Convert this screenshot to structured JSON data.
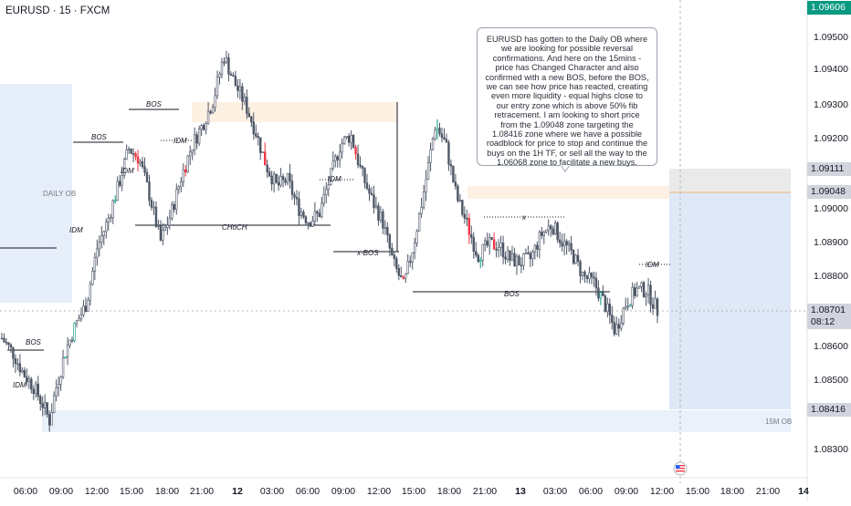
{
  "header": {
    "symbol": "EURUSD · 15 · FXCM"
  },
  "colors": {
    "up": "#089981",
    "down": "#f23645",
    "candle": "#4d5666",
    "ob_zone": "#e6eefa",
    "supply_zone": "#fdf1e3",
    "target_zone": "#dfe8f7",
    "stop_zone": "#eaeaea",
    "accent": "#2962ff"
  },
  "note": {
    "text": "EURUSD has gotten to the Daily OB where we are looking for possible reversal confirmations. And here on the 15mins - price has Changed Character and also confirmed with a new BOS, before the BOS, we can see how price has reacted, creating even more liquidity - equal highs close to our entry zone which is above 50% fib retracement. I am looking to short price from the 1.09048 zone targeting the 1.08416 zone where we have a possible roadblock for price to stop and continue the buys on the 1H TF, or sell all the way to the 1.06068 zone to facilitate a new buys."
  },
  "price_axis": {
    "ticks": [
      "1.09500",
      "1.09400",
      "1.09300",
      "1.09200",
      "1.09000",
      "1.08900",
      "1.08800",
      "1.08600",
      "1.08500",
      "1.08300"
    ],
    "tags": [
      {
        "price": "1.09606",
        "bg": "#089981",
        "fg": "#ffffff"
      },
      {
        "price": "1.09111",
        "bg": "#d1d4dc",
        "fg": "#131722"
      },
      {
        "price": "1.09048",
        "bg": "#d1d4dc",
        "fg": "#131722"
      },
      {
        "price": "1.08701",
        "bg": "#d1d4dc",
        "fg": "#131722",
        "sub": "08:12"
      },
      {
        "price": "1.08416",
        "bg": "#d1d4dc",
        "fg": "#131722"
      }
    ]
  },
  "time_axis": {
    "labels": [
      "06:00",
      "09:00",
      "12:00",
      "15:00",
      "18:00",
      "21:00",
      "12",
      "03:00",
      "06:00",
      "09:00",
      "12:00",
      "15:00",
      "18:00",
      "21:00",
      "13",
      "03:00",
      "06:00",
      "09:00",
      "12:00",
      "15:00",
      "18:00",
      "21:00",
      "14"
    ]
  },
  "annotations": {
    "daily_ob": "DAILY OB",
    "ob_15m": "15M OB",
    "bos": "BOS",
    "idm": "IDM",
    "choch": "CHoCH",
    "x_bos": "x-BOS",
    "x": "x"
  },
  "chart_data": {
    "type": "candlestick",
    "symbol": "EURUSD",
    "timeframe": "15",
    "source": "FXCM",
    "last_price": 1.08701,
    "countdown": "08:12",
    "ylim": [
      1.0825,
      1.0965
    ],
    "key_levels": {
      "entry": 1.09048,
      "target": 1.08416,
      "stop": 1.09111,
      "high": 1.09606
    },
    "close_path": [
      [
        0,
        1.0862
      ],
      [
        1,
        1.0858
      ],
      [
        2,
        1.0852
      ],
      [
        3,
        1.0848
      ],
      [
        4,
        1.0842
      ],
      [
        4.5,
        1.0838
      ],
      [
        5,
        1.0846
      ],
      [
        6,
        1.0858
      ],
      [
        7,
        1.0866
      ],
      [
        8,
        1.0872
      ],
      [
        9,
        1.0888
      ],
      [
        10,
        1.0896
      ],
      [
        11,
        1.0906
      ],
      [
        12,
        1.0917
      ],
      [
        13,
        1.0914
      ],
      [
        14,
        1.0903
      ],
      [
        15,
        1.089
      ],
      [
        16,
        1.0898
      ],
      [
        17,
        1.0909
      ],
      [
        18,
        1.0918
      ],
      [
        19,
        1.0924
      ],
      [
        20,
        1.0931
      ],
      [
        21,
        1.0944
      ],
      [
        22,
        1.0936
      ],
      [
        23,
        1.093
      ],
      [
        24,
        1.0922
      ],
      [
        25,
        1.0912
      ],
      [
        26,
        1.0906
      ],
      [
        27,
        1.0908
      ],
      [
        28,
        1.09
      ],
      [
        29,
        1.0896
      ],
      [
        30,
        1.0898
      ],
      [
        31,
        1.0908
      ],
      [
        32,
        1.0918
      ],
      [
        33,
        1.0921
      ],
      [
        34,
        1.091
      ],
      [
        35,
        1.0902
      ],
      [
        36,
        1.0896
      ],
      [
        37,
        1.0884
      ],
      [
        38,
        1.0877
      ],
      [
        39,
        1.089
      ],
      [
        40,
        1.0906
      ],
      [
        41,
        1.0924
      ],
      [
        42,
        1.0918
      ],
      [
        43,
        1.0903
      ],
      [
        44,
        1.0895
      ],
      [
        45,
        1.0886
      ],
      [
        46,
        1.0889
      ],
      [
        47,
        1.0889
      ],
      [
        48,
        1.0885
      ],
      [
        49,
        1.0884
      ],
      [
        50,
        1.0885
      ],
      [
        51,
        1.0892
      ],
      [
        52,
        1.0895
      ],
      [
        53,
        1.089
      ],
      [
        54,
        1.0886
      ],
      [
        55,
        1.088
      ],
      [
        56,
        1.0878
      ],
      [
        57,
        1.0872
      ],
      [
        58,
        1.0864
      ],
      [
        59,
        1.0872
      ],
      [
        60,
        1.0876
      ],
      [
        61,
        1.0876
      ],
      [
        62,
        1.087
      ]
    ]
  }
}
